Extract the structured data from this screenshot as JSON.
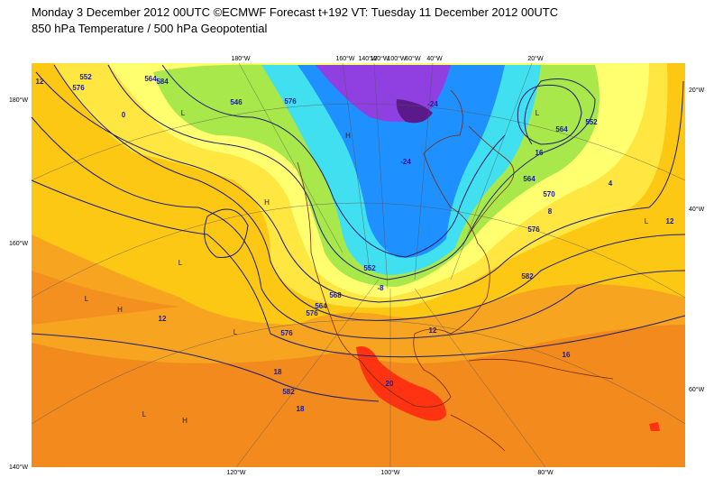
{
  "header": {
    "line1": "Monday 3 December 2012 00UTC ©ECMWF Forecast t+192 VT: Tuesday 11 December 2012 00UTC",
    "line2": "850 hPa Temperature / 500 hPa Geopotential"
  },
  "map": {
    "top_labels": [
      "180°W",
      "160°W",
      "140°W",
      "120°W",
      "100°W",
      "60°W",
      "40°W",
      "20°W"
    ],
    "bottom_labels": [
      "120°W",
      "100°W",
      "80°W"
    ],
    "left_labels": [
      "180°W",
      "160°W",
      "140°W"
    ],
    "right_labels": [
      "20°W",
      "40°W",
      "60°W"
    ],
    "contour_labels": [
      "552",
      "576",
      "12",
      "564",
      "584",
      "0",
      "546",
      "576",
      "-24",
      "-24",
      "552",
      "-8",
      "568",
      "564",
      "576",
      "12",
      "576",
      "12",
      "18",
      "582",
      "18",
      "20",
      "576",
      "570",
      "564",
      "582",
      "16",
      "12",
      "552",
      "564",
      "16",
      "4",
      "8"
    ],
    "pressure_marks": [
      "L",
      "H",
      "L",
      "L",
      "H",
      "L",
      "L",
      "H",
      "L",
      "L",
      "H"
    ]
  }
}
